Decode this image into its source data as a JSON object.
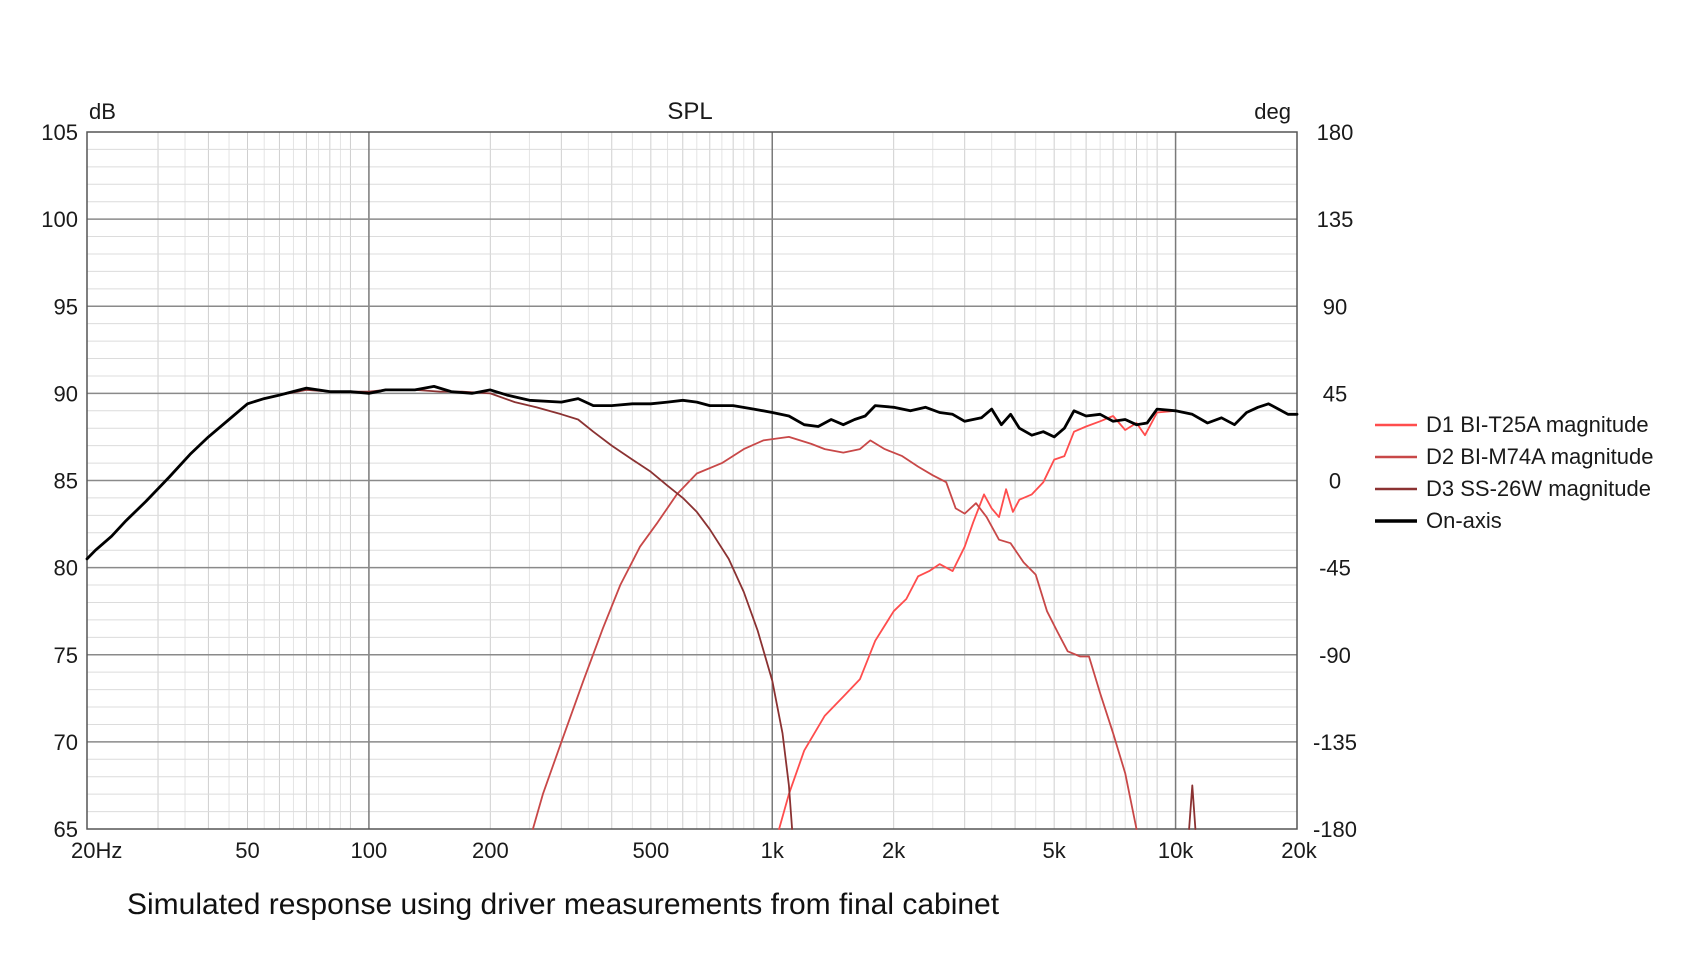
{
  "caption": "Simulated response using driver measurements from final cabinet",
  "chart_data": {
    "type": "line",
    "title": "SPL",
    "ylabel": "dB",
    "y2label": "deg",
    "xscale": "log",
    "xlim": [
      20,
      20000
    ],
    "ylim": [
      65,
      105
    ],
    "y2lim": [
      -180,
      180
    ],
    "grid": true,
    "legend_position": "right",
    "x_ticks": [
      {
        "v": 20,
        "label": "20Hz"
      },
      {
        "v": 50,
        "label": "50"
      },
      {
        "v": 100,
        "label": "100"
      },
      {
        "v": 200,
        "label": "200"
      },
      {
        "v": 500,
        "label": "500"
      },
      {
        "v": 1000,
        "label": "1k"
      },
      {
        "v": 2000,
        "label": "2k"
      },
      {
        "v": 5000,
        "label": "5k"
      },
      {
        "v": 10000,
        "label": "10k"
      },
      {
        "v": 20000,
        "label": "20k"
      }
    ],
    "y_ticks": [
      {
        "v": 105,
        "label": "105"
      },
      {
        "v": 100,
        "label": "100"
      },
      {
        "v": 95,
        "label": "95"
      },
      {
        "v": 90,
        "label": "90"
      },
      {
        "v": 85,
        "label": "85"
      },
      {
        "v": 80,
        "label": "80"
      },
      {
        "v": 75,
        "label": "75"
      },
      {
        "v": 70,
        "label": "70"
      },
      {
        "v": 65,
        "label": "65"
      }
    ],
    "y2_ticks": [
      {
        "v": 180,
        "label": "180"
      },
      {
        "v": 135,
        "label": "135"
      },
      {
        "v": 90,
        "label": "90"
      },
      {
        "v": 45,
        "label": "45"
      },
      {
        "v": 0,
        "label": "0"
      },
      {
        "v": -45,
        "label": "-45"
      },
      {
        "v": -90,
        "label": "-90"
      },
      {
        "v": -135,
        "label": "-135"
      },
      {
        "v": -180,
        "label": "-180"
      }
    ],
    "series": [
      {
        "name": "D1 BI-T25A magnitude",
        "color": "#ff4d4d",
        "points": [
          [
            1040,
            65
          ],
          [
            1100,
            67
          ],
          [
            1200,
            69.5
          ],
          [
            1350,
            71.5
          ],
          [
            1500,
            72.6
          ],
          [
            1650,
            73.6
          ],
          [
            1800,
            75.8
          ],
          [
            2000,
            77.5
          ],
          [
            2150,
            78.2
          ],
          [
            2300,
            79.5
          ],
          [
            2450,
            79.8
          ],
          [
            2600,
            80.2
          ],
          [
            2800,
            79.8
          ],
          [
            3000,
            81.2
          ],
          [
            3150,
            82.6
          ],
          [
            3350,
            84.2
          ],
          [
            3500,
            83.4
          ],
          [
            3650,
            82.9
          ],
          [
            3800,
            84.5
          ],
          [
            3950,
            83.2
          ],
          [
            4100,
            83.9
          ],
          [
            4400,
            84.2
          ],
          [
            4700,
            84.9
          ],
          [
            5000,
            86.2
          ],
          [
            5300,
            86.4
          ],
          [
            5600,
            87.8
          ],
          [
            6000,
            88.1
          ],
          [
            6500,
            88.4
          ],
          [
            7000,
            88.7
          ],
          [
            7500,
            87.9
          ],
          [
            8000,
            88.3
          ],
          [
            8400,
            87.6
          ],
          [
            9000,
            88.9
          ],
          [
            10000,
            89
          ],
          [
            11000,
            88.8
          ],
          [
            12000,
            88.3
          ],
          [
            13000,
            88.6
          ],
          [
            14000,
            88.2
          ],
          [
            15000,
            88.9
          ],
          [
            16000,
            89.2
          ],
          [
            17000,
            89.4
          ],
          [
            18000,
            89.1
          ],
          [
            19000,
            88.8
          ],
          [
            20000,
            88.8
          ]
        ]
      },
      {
        "name": "D2 BI-M74A magnitude",
        "color": "#c84848",
        "points": [
          [
            255,
            65
          ],
          [
            270,
            67
          ],
          [
            300,
            70
          ],
          [
            340,
            73.5
          ],
          [
            380,
            76.5
          ],
          [
            420,
            79
          ],
          [
            470,
            81.2
          ],
          [
            520,
            82.6
          ],
          [
            580,
            84.2
          ],
          [
            650,
            85.4
          ],
          [
            750,
            86
          ],
          [
            850,
            86.8
          ],
          [
            950,
            87.3
          ],
          [
            1100,
            87.5
          ],
          [
            1250,
            87.1
          ],
          [
            1350,
            86.8
          ],
          [
            1500,
            86.6
          ],
          [
            1650,
            86.8
          ],
          [
            1750,
            87.3
          ],
          [
            1900,
            86.8
          ],
          [
            2100,
            86.4
          ],
          [
            2300,
            85.8
          ],
          [
            2500,
            85.3
          ],
          [
            2700,
            84.9
          ],
          [
            2850,
            83.4
          ],
          [
            3000,
            83.1
          ],
          [
            3200,
            83.7
          ],
          [
            3400,
            82.9
          ],
          [
            3650,
            81.6
          ],
          [
            3900,
            81.4
          ],
          [
            4200,
            80.3
          ],
          [
            4500,
            79.6
          ],
          [
            4800,
            77.5
          ],
          [
            5100,
            76.3
          ],
          [
            5400,
            75.2
          ],
          [
            5800,
            74.9
          ],
          [
            6100,
            74.9
          ],
          [
            6500,
            72.8
          ],
          [
            7000,
            70.5
          ],
          [
            7500,
            68.2
          ],
          [
            8000,
            65
          ]
        ]
      },
      {
        "name": "D3 SS-26W magnitude",
        "color": "#8b3232",
        "points": [
          [
            20,
            80.5
          ],
          [
            21,
            81
          ],
          [
            23,
            81.8
          ],
          [
            25,
            82.7
          ],
          [
            28,
            83.8
          ],
          [
            32,
            85.2
          ],
          [
            36,
            86.5
          ],
          [
            40,
            87.5
          ],
          [
            45,
            88.5
          ],
          [
            50,
            89.4
          ],
          [
            55,
            89.7
          ],
          [
            60,
            89.9
          ],
          [
            70,
            90.2
          ],
          [
            80,
            90.1
          ],
          [
            90,
            90.1
          ],
          [
            100,
            90.1
          ],
          [
            110,
            90.2
          ],
          [
            130,
            90.2
          ],
          [
            150,
            90.1
          ],
          [
            170,
            90.1
          ],
          [
            200,
            90
          ],
          [
            230,
            89.5
          ],
          [
            260,
            89.2
          ],
          [
            300,
            88.8
          ],
          [
            330,
            88.5
          ],
          [
            360,
            87.8
          ],
          [
            400,
            87
          ],
          [
            450,
            86.2
          ],
          [
            500,
            85.5
          ],
          [
            550,
            84.7
          ],
          [
            600,
            84
          ],
          [
            650,
            83.2
          ],
          [
            700,
            82.2
          ],
          [
            780,
            80.5
          ],
          [
            850,
            78.6
          ],
          [
            920,
            76.4
          ],
          [
            1000,
            73.5
          ],
          [
            1060,
            70.5
          ],
          [
            1100,
            67.5
          ],
          [
            1120,
            65
          ]
        ]
      },
      {
        "name": "D3 SS-26W magnitude",
        "color": "#8b3232",
        "points": [
          [
            10800,
            65
          ],
          [
            11000,
            67.5
          ],
          [
            11200,
            65
          ]
        ]
      },
      {
        "name": "On-axis",
        "color": "#000000",
        "points": [
          [
            20,
            80.5
          ],
          [
            21,
            81
          ],
          [
            23,
            81.8
          ],
          [
            25,
            82.7
          ],
          [
            28,
            83.8
          ],
          [
            32,
            85.2
          ],
          [
            36,
            86.5
          ],
          [
            40,
            87.5
          ],
          [
            45,
            88.5
          ],
          [
            50,
            89.4
          ],
          [
            55,
            89.7
          ],
          [
            60,
            89.9
          ],
          [
            70,
            90.3
          ],
          [
            80,
            90.1
          ],
          [
            90,
            90.1
          ],
          [
            100,
            90
          ],
          [
            110,
            90.2
          ],
          [
            130,
            90.2
          ],
          [
            145,
            90.4
          ],
          [
            160,
            90.1
          ],
          [
            180,
            90
          ],
          [
            200,
            90.2
          ],
          [
            220,
            89.9
          ],
          [
            250,
            89.6
          ],
          [
            300,
            89.5
          ],
          [
            330,
            89.7
          ],
          [
            360,
            89.3
          ],
          [
            400,
            89.3
          ],
          [
            450,
            89.4
          ],
          [
            500,
            89.4
          ],
          [
            550,
            89.5
          ],
          [
            600,
            89.6
          ],
          [
            650,
            89.5
          ],
          [
            700,
            89.3
          ],
          [
            800,
            89.3
          ],
          [
            900,
            89.1
          ],
          [
            1000,
            88.9
          ],
          [
            1100,
            88.7
          ],
          [
            1200,
            88.2
          ],
          [
            1300,
            88.1
          ],
          [
            1400,
            88.5
          ],
          [
            1500,
            88.2
          ],
          [
            1600,
            88.5
          ],
          [
            1700,
            88.7
          ],
          [
            1800,
            89.3
          ],
          [
            2000,
            89.2
          ],
          [
            2200,
            89
          ],
          [
            2400,
            89.2
          ],
          [
            2600,
            88.9
          ],
          [
            2800,
            88.8
          ],
          [
            3000,
            88.4
          ],
          [
            3300,
            88.6
          ],
          [
            3500,
            89.1
          ],
          [
            3700,
            88.2
          ],
          [
            3900,
            88.8
          ],
          [
            4100,
            88
          ],
          [
            4400,
            87.6
          ],
          [
            4700,
            87.8
          ],
          [
            5000,
            87.5
          ],
          [
            5300,
            88
          ],
          [
            5600,
            89
          ],
          [
            6000,
            88.7
          ],
          [
            6500,
            88.8
          ],
          [
            7000,
            88.4
          ],
          [
            7500,
            88.5
          ],
          [
            8000,
            88.2
          ],
          [
            8500,
            88.3
          ],
          [
            9000,
            89.1
          ],
          [
            10000,
            89
          ],
          [
            11000,
            88.8
          ],
          [
            12000,
            88.3
          ],
          [
            13000,
            88.6
          ],
          [
            14000,
            88.2
          ],
          [
            15000,
            88.9
          ],
          [
            16000,
            89.2
          ],
          [
            17000,
            89.4
          ],
          [
            18000,
            89.1
          ],
          [
            19000,
            88.8
          ],
          [
            20000,
            88.8
          ]
        ]
      }
    ],
    "legend": [
      {
        "name": "D1 BI-T25A magnitude",
        "color": "#ff4d4d"
      },
      {
        "name": "D2 BI-M74A magnitude",
        "color": "#c84848"
      },
      {
        "name": "D3 SS-26W magnitude",
        "color": "#8b3232"
      },
      {
        "name": "On-axis",
        "color": "#000000"
      }
    ]
  }
}
